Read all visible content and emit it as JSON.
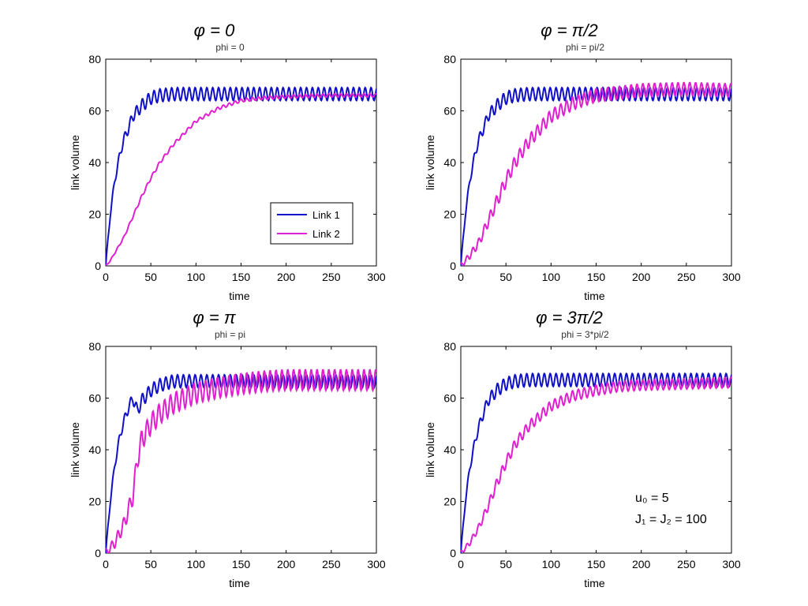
{
  "chart_data": [
    {
      "type": "line",
      "title": "φ = 0",
      "subtitle": "phi = 0",
      "xlabel": "time",
      "ylabel": "link volume",
      "xlim": [
        0,
        300
      ],
      "ylim": [
        0,
        80
      ],
      "xticks": [
        0,
        50,
        100,
        150,
        200,
        250,
        300
      ],
      "yticks": [
        0,
        20,
        40,
        60,
        80
      ],
      "grid": false,
      "legend": "bottom-right",
      "series": [
        {
          "name": "Link 1",
          "color": "#1010c8",
          "x": [
            0,
            5,
            10,
            15,
            20,
            25,
            30,
            40,
            50,
            60,
            75,
            100,
            150,
            200,
            250,
            300
          ],
          "y": [
            0,
            20,
            33,
            42,
            49,
            53,
            58,
            62,
            65,
            66,
            66.5,
            66.5,
            66.5,
            66.5,
            66.5,
            66.5
          ],
          "oscillation": 2.5
        },
        {
          "name": "Link 2",
          "color": "#e020d0",
          "x": [
            0,
            5,
            10,
            20,
            30,
            40,
            50,
            60,
            75,
            100,
            125,
            150,
            175,
            200,
            250,
            300
          ],
          "y": [
            0,
            2,
            5,
            11,
            19,
            27,
            34,
            40,
            47,
            56,
            61,
            64,
            65,
            65.5,
            66,
            66
          ],
          "oscillation": 0.6
        }
      ]
    },
    {
      "type": "line",
      "title": "φ = π/2",
      "subtitle": "phi = pi/2",
      "xlabel": "time",
      "ylabel": "link volume",
      "xlim": [
        0,
        300
      ],
      "ylim": [
        0,
        80
      ],
      "xticks": [
        0,
        50,
        100,
        150,
        200,
        250,
        300
      ],
      "yticks": [
        0,
        20,
        40,
        60,
        80
      ],
      "grid": false,
      "series": [
        {
          "name": "Link 1",
          "color": "#1010c8",
          "x": [
            0,
            5,
            10,
            15,
            20,
            25,
            30,
            40,
            50,
            60,
            75,
            100,
            150,
            200,
            250,
            300
          ],
          "y": [
            0,
            20,
            33,
            42,
            49,
            53,
            58,
            62,
            65,
            66,
            66.5,
            66.5,
            66.5,
            66.5,
            66.5,
            66.5
          ],
          "oscillation": 2.5
        },
        {
          "name": "Link 2",
          "color": "#e020d0",
          "x": [
            0,
            10,
            20,
            30,
            40,
            50,
            60,
            75,
            100,
            125,
            150,
            175,
            200,
            250,
            300
          ],
          "y": [
            0,
            4,
            9,
            17,
            25,
            33,
            40,
            48,
            58,
            63,
            66,
            67,
            68,
            68.5,
            68
          ],
          "oscillation": 2.5
        }
      ]
    },
    {
      "type": "line",
      "title": "φ = π",
      "subtitle": "phi = pi",
      "xlabel": "time",
      "ylabel": "link volume",
      "xlim": [
        0,
        300
      ],
      "ylim": [
        0,
        80
      ],
      "xticks": [
        0,
        50,
        100,
        150,
        200,
        250,
        300
      ],
      "yticks": [
        0,
        20,
        40,
        60,
        80
      ],
      "grid": false,
      "series": [
        {
          "name": "Link 1",
          "color": "#1010c8",
          "x": [
            0,
            5,
            10,
            15,
            20,
            25,
            30,
            35,
            40,
            50,
            60,
            75,
            100,
            150,
            200,
            250,
            300
          ],
          "y": [
            0,
            20,
            34,
            44,
            51,
            56,
            60,
            55,
            59,
            63,
            65,
            66.5,
            66.5,
            66.5,
            66.5,
            66.5,
            66.5
          ],
          "oscillation": 2.5
        },
        {
          "name": "Link 2",
          "color": "#e020d0",
          "x": [
            0,
            10,
            20,
            30,
            35,
            40,
            50,
            60,
            75,
            100,
            125,
            150,
            175,
            200,
            250,
            300
          ],
          "y": [
            0,
            4,
            11,
            22,
            36,
            44,
            50,
            54,
            58,
            62,
            64,
            65.5,
            66.5,
            67,
            67,
            67
          ],
          "oscillation": 4
        }
      ]
    },
    {
      "type": "line",
      "title": "φ = 3π/2",
      "subtitle": "phi = 3*pi/2",
      "xlabel": "time",
      "ylabel": "link volume",
      "xlim": [
        0,
        300
      ],
      "ylim": [
        0,
        80
      ],
      "xticks": [
        0,
        50,
        100,
        150,
        200,
        250,
        300
      ],
      "yticks": [
        0,
        20,
        40,
        60,
        80
      ],
      "grid": false,
      "annotations": [
        "u₀ = 5",
        "J₁ = J₂ = 100"
      ],
      "series": [
        {
          "name": "Link 1",
          "color": "#1010c8",
          "x": [
            0,
            5,
            10,
            15,
            20,
            25,
            30,
            40,
            50,
            60,
            75,
            100,
            150,
            200,
            250,
            300
          ],
          "y": [
            0,
            20,
            33,
            42,
            49,
            54,
            59,
            63,
            65.5,
            66.5,
            67,
            67,
            67,
            67,
            67,
            67
          ],
          "oscillation": 2.5
        },
        {
          "name": "Link 2",
          "color": "#e020d0",
          "x": [
            0,
            10,
            20,
            30,
            40,
            50,
            60,
            75,
            100,
            125,
            150,
            175,
            200,
            250,
            300
          ],
          "y": [
            0,
            4,
            10,
            18,
            27,
            35,
            42,
            49,
            57,
            61,
            63,
            64.5,
            65,
            65.5,
            66
          ],
          "oscillation": 2
        }
      ]
    }
  ]
}
